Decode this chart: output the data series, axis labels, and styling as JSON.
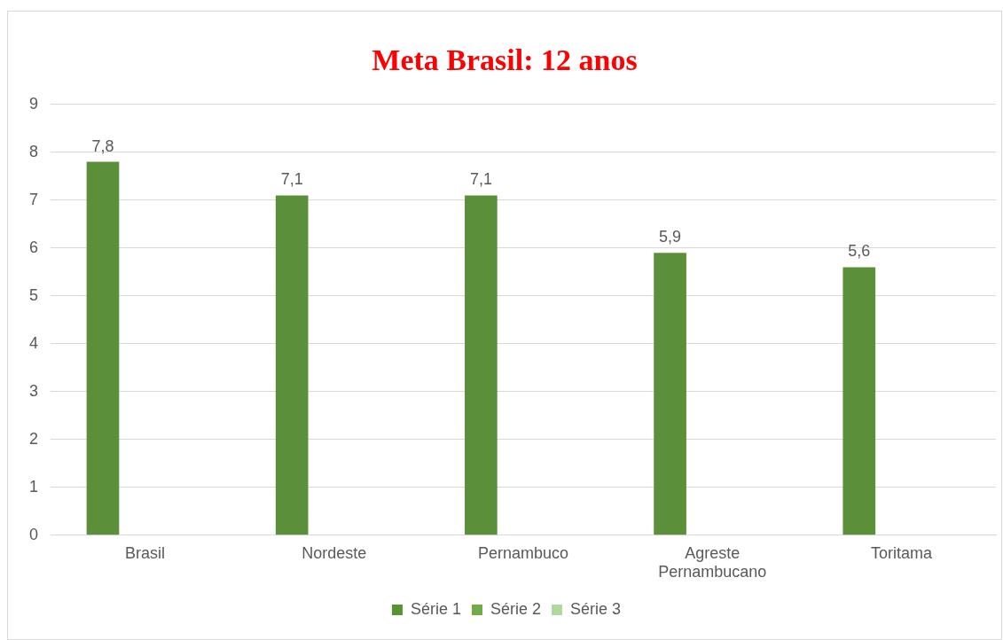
{
  "chart_data": {
    "type": "bar",
    "title": "Meta Brasil: 12 anos",
    "categories": [
      "Brasil",
      "Nordeste",
      "Pernambuco",
      "Agreste Pernambucano",
      "Toritama"
    ],
    "series": [
      {
        "name": "Série 1",
        "color": "#5b8f3a",
        "values": [
          7.8,
          7.1,
          7.1,
          5.9,
          5.6
        ],
        "value_labels": [
          "7,8",
          "7,1",
          "7,1",
          "5,9",
          "5,6"
        ]
      },
      {
        "name": "Série 2",
        "color": "#70ad47",
        "values": [
          null,
          null,
          null,
          null,
          null
        ]
      },
      {
        "name": "Série 3",
        "color": "#b4d69f",
        "values": [
          null,
          null,
          null,
          null,
          null
        ]
      }
    ],
    "ylim": [
      0,
      9
    ],
    "yticks": [
      0,
      1,
      2,
      3,
      4,
      5,
      6,
      7,
      8,
      9
    ],
    "grid": "y",
    "legend": "bottom"
  }
}
